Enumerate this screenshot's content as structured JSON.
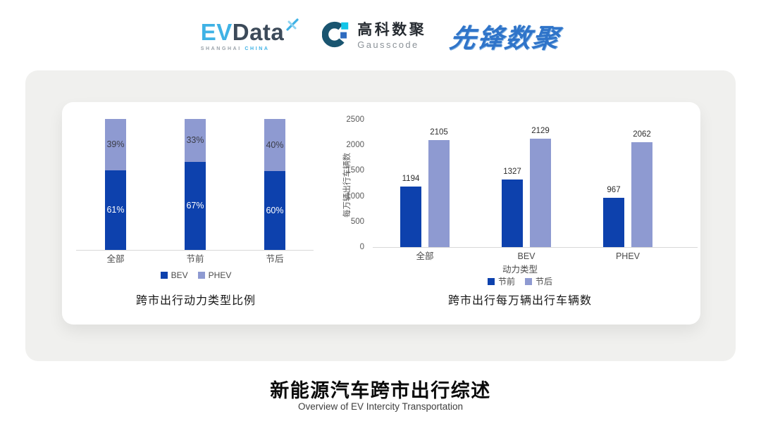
{
  "header": {
    "evdata": {
      "word_ev": "EV",
      "word_data": "Data",
      "sub_shanghai": "SHANGHAI ",
      "sub_china": "CHINA"
    },
    "gausscode": {
      "name_cn": "高科数聚",
      "name_en": "Gausscode"
    },
    "pioneer": {
      "name": "先锋数聚"
    }
  },
  "colors": {
    "bev_dark_blue": "#0d41ad",
    "phev_light_blue": "#8e9ad1",
    "evdata_cyan": "#3fb2e5",
    "evdata_slate": "#3c4a59",
    "gausscode_teal": "#1a5570",
    "gausscode_cyan": "#12c5e8",
    "gausscode_blue": "#2e6bbf",
    "pioneer_blue": "#2f74c9",
    "panel_gray": "#f0f0ee"
  },
  "chart_data": [
    {
      "type": "bar",
      "variant": "stacked-percent",
      "title": "跨市出行动力类型比例",
      "categories": [
        "全部",
        "节前",
        "节后"
      ],
      "series": [
        {
          "name": "BEV",
          "color": "#0d41ad",
          "values": [
            61,
            67,
            60
          ]
        },
        {
          "name": "PHEV",
          "color": "#8e9ad1",
          "values": [
            39,
            33,
            40
          ]
        }
      ],
      "value_suffix": "%",
      "ylim": [
        0,
        100
      ],
      "grid": false,
      "legend_position": "bottom"
    },
    {
      "type": "bar",
      "variant": "grouped",
      "title": "跨市出行每万辆出行车辆数",
      "categories": [
        "全部",
        "BEV",
        "PHEV"
      ],
      "xlabel": "动力类型",
      "ylabel": "每万辆出行车辆数",
      "ylim": [
        0,
        2500
      ],
      "yticks": [
        0,
        500,
        1000,
        1500,
        2000,
        2500
      ],
      "series": [
        {
          "name": "节前",
          "color": "#0d41ad",
          "values": [
            1194,
            1327,
            967
          ]
        },
        {
          "name": "节后",
          "color": "#8e9ad1",
          "values": [
            2105,
            2129,
            2062
          ]
        }
      ],
      "grid": false,
      "legend_position": "bottom"
    }
  ],
  "footer": {
    "title": "新能源汽车跨市出行综述",
    "subtitle": "Overview of EV Intercity Transportation"
  }
}
